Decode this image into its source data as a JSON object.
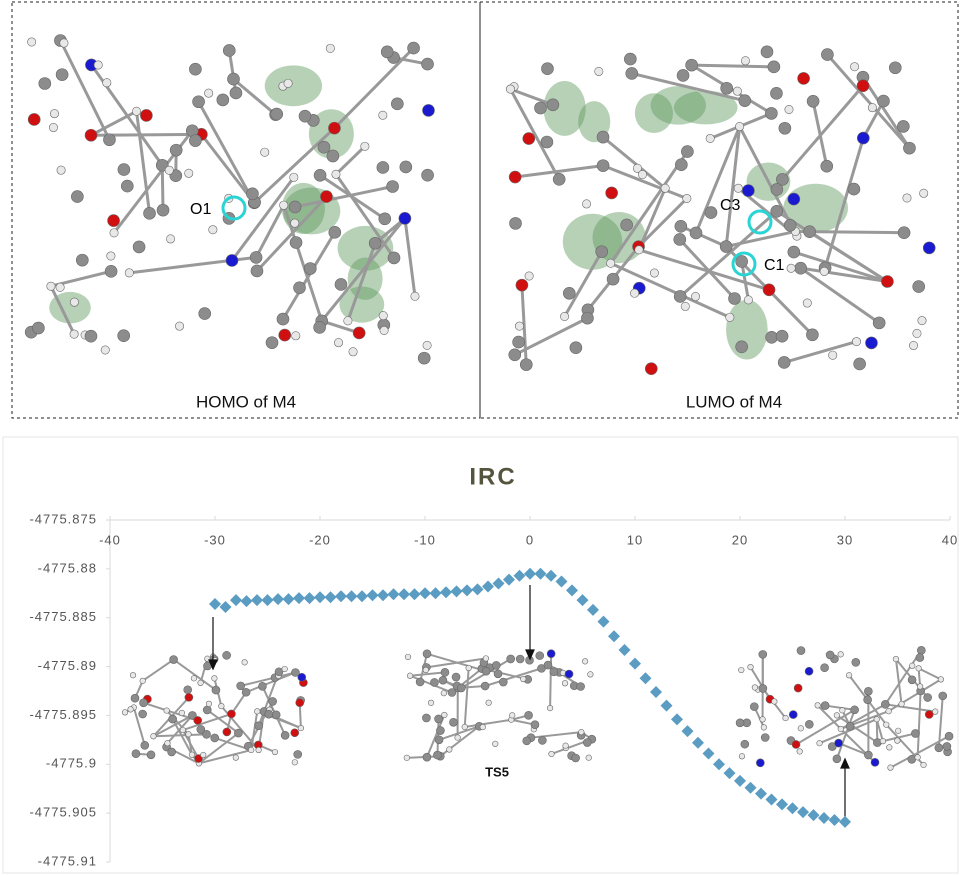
{
  "panels": [
    {
      "label": "HOMO of M4",
      "atoms": [
        "O1"
      ]
    },
    {
      "label": "LUMO of M4",
      "atoms": [
        "C3",
        "C1"
      ]
    }
  ],
  "chart_data": {
    "type": "scatter",
    "title": "IRC",
    "marker": "diamond",
    "color": "#5b9cc3",
    "annotations": [
      "TS5"
    ],
    "x": [
      -30,
      -29,
      -28,
      -27,
      -26,
      -25,
      -24,
      -23,
      -22,
      -21,
      -20,
      -19,
      -18,
      -17,
      -16,
      -15,
      -14,
      -13,
      -12,
      -11,
      -10,
      -9,
      -8,
      -7,
      -6,
      -5,
      -4,
      -3,
      -2,
      -1,
      0,
      1,
      2,
      3,
      4,
      5,
      6,
      7,
      8,
      9,
      10,
      11,
      12,
      13,
      14,
      15,
      16,
      17,
      18,
      19,
      20,
      21,
      22,
      23,
      24,
      25,
      26,
      27,
      28,
      29,
      30
    ],
    "values": [
      -4775.8836,
      -4775.8839,
      -4775.8832,
      -4775.8833,
      -4775.8832,
      -4775.8832,
      -4775.8831,
      -4775.8831,
      -4775.883,
      -4775.883,
      -4775.8829,
      -4775.8829,
      -4775.8828,
      -4775.8828,
      -4775.8828,
      -4775.8827,
      -4775.8827,
      -4775.8826,
      -4775.8826,
      -4775.8826,
      -4775.8825,
      -4775.8825,
      -4775.8824,
      -4775.8823,
      -4775.8822,
      -4775.8821,
      -4775.8818,
      -4775.8815,
      -4775.8811,
      -4775.8807,
      -4775.8805,
      -4775.8805,
      -4775.8807,
      -4775.8813,
      -4775.8822,
      -4775.8832,
      -4775.8842,
      -4775.8854,
      -4775.8869,
      -4775.8883,
      -4775.8897,
      -4775.8912,
      -4775.8926,
      -4775.894,
      -4775.8954,
      -4775.8966,
      -4775.8978,
      -4775.8989,
      -4775.9,
      -4775.9009,
      -4775.9017,
      -4775.9024,
      -4775.903,
      -4775.9036,
      -4775.9041,
      -4775.9045,
      -4775.9049,
      -4775.9052,
      -4775.9055,
      -4775.9057,
      -4775.9059
    ],
    "xlim": [
      -40,
      40
    ],
    "xticks": [
      -40,
      -30,
      -20,
      -10,
      0,
      10,
      20,
      30,
      40
    ],
    "ylim": [
      -4775.91,
      -4775.875
    ],
    "yticks": [
      -4775.875,
      -4775.88,
      -4775.885,
      -4775.89,
      -4775.895,
      -4775.9,
      -4775.905,
      -4775.91
    ]
  }
}
